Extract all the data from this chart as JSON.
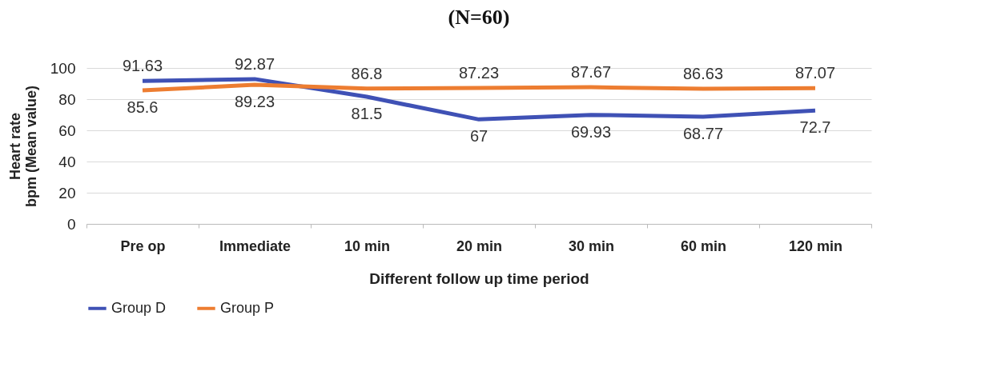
{
  "chart_data": {
    "type": "line",
    "title": "(N=60)",
    "xlabel": "Different follow up time period",
    "ylabel": "Heart rate\nbpm (Mean value)",
    "categories": [
      "Pre op",
      "Immediate",
      "10 min",
      "20 min",
      "30 min",
      "60 min",
      "120 min"
    ],
    "series": [
      {
        "name": "Group D",
        "color": "#3f51b5",
        "values": [
          91.63,
          92.87,
          81.5,
          67,
          69.93,
          68.77,
          72.7
        ]
      },
      {
        "name": "Group P",
        "color": "#ed7d31",
        "values": [
          85.6,
          89.23,
          86.8,
          87.23,
          87.67,
          86.63,
          87.07
        ]
      }
    ],
    "ylim": [
      0,
      100
    ],
    "yticks": [
      0,
      20,
      40,
      60,
      80,
      100
    ],
    "grid": "y",
    "legend": "bottom",
    "data_labels": true,
    "marker": "none",
    "line_style": "solid"
  }
}
